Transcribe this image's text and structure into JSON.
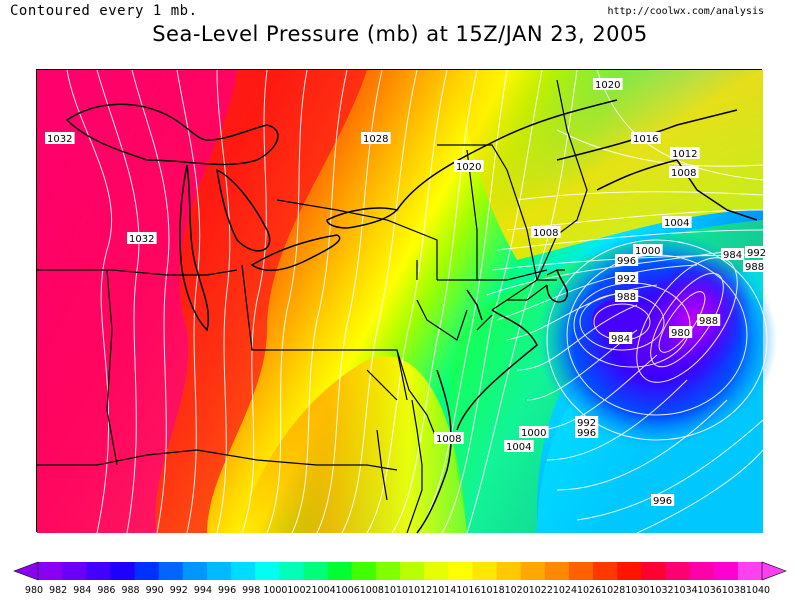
{
  "header": {
    "contour_note": "Contoured every 1 mb.",
    "source": "http://coolwx.com/analysis",
    "title": "Sea-Level Pressure (mb) at 15Z/JAN 23, 2005"
  },
  "map": {
    "contour_labels": [
      {
        "text": "1032",
        "pos": "left-edge-top"
      },
      {
        "text": "1028",
        "pos": "north-center"
      },
      {
        "text": "1020",
        "pos": "top"
      },
      {
        "text": "1020",
        "pos": "new-york"
      },
      {
        "text": "1016",
        "pos": "quebec"
      },
      {
        "text": "1012",
        "pos": "maine-north"
      },
      {
        "text": "1008",
        "pos": "maine"
      },
      {
        "text": "1008",
        "pos": "new-england"
      },
      {
        "text": "1004",
        "pos": "gulf-of-maine"
      },
      {
        "text": "1032",
        "pos": "great-lakes"
      },
      {
        "text": "1000",
        "pos": "east-offshore"
      },
      {
        "text": "996",
        "pos": "east-offshore"
      },
      {
        "text": "992",
        "pos": "east-offshore"
      },
      {
        "text": "988",
        "pos": "east-offshore"
      },
      {
        "text": "984",
        "pos": "low-center-west"
      },
      {
        "text": "980",
        "pos": "low-center"
      },
      {
        "text": "988",
        "pos": "low-east"
      },
      {
        "text": "984",
        "pos": "low-ne"
      },
      {
        "text": "992",
        "pos": "right-edge"
      },
      {
        "text": "988",
        "pos": "right-edge"
      },
      {
        "text": "992",
        "pos": "south-offshore"
      },
      {
        "text": "996",
        "pos": "south-offshore"
      },
      {
        "text": "1000",
        "pos": "mid-atlantic-offshore"
      },
      {
        "text": "1004",
        "pos": "mid-atlantic-offshore"
      },
      {
        "text": "1008",
        "pos": "delmarva"
      },
      {
        "text": "996",
        "pos": "southeast-offshore"
      }
    ]
  },
  "colorbar": {
    "labels": [
      "980",
      "982",
      "984",
      "986",
      "988",
      "990",
      "992",
      "994",
      "996",
      "998",
      "1000",
      "1002",
      "1004",
      "1006",
      "1008",
      "1010",
      "1012",
      "1014",
      "1016",
      "1018",
      "1020",
      "1022",
      "1024",
      "1026",
      "1028",
      "1030",
      "1032",
      "1034",
      "1036",
      "1038",
      "1040"
    ],
    "colors": [
      "#8a00f0",
      "#6a00f8",
      "#4400ff",
      "#1e00ff",
      "#0030ff",
      "#0066ff",
      "#0096ff",
      "#00baff",
      "#00dcff",
      "#00fff0",
      "#00ffb8",
      "#00ff78",
      "#00ff30",
      "#40ff00",
      "#80ff00",
      "#b8ff00",
      "#e6ff00",
      "#ffff00",
      "#ffe600",
      "#ffc800",
      "#ffa800",
      "#ff8800",
      "#ff6000",
      "#ff3800",
      "#ff1400",
      "#ff0030",
      "#ff0070",
      "#ff00a8",
      "#ff00d0",
      "#ff40f0"
    ]
  }
}
